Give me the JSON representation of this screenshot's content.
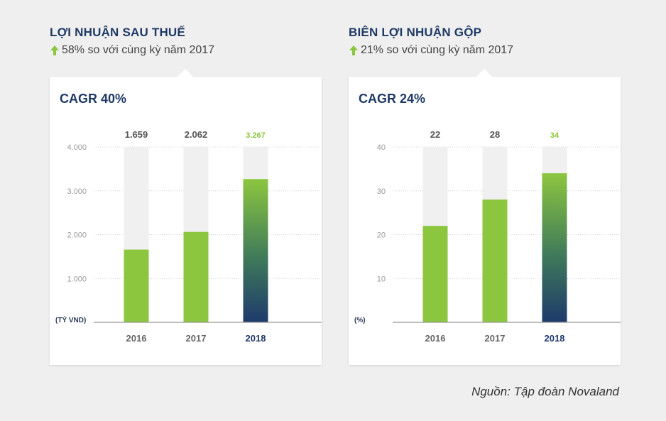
{
  "source": "Nguồn: Tập đoàn Novaland",
  "colors": {
    "green": "#8cc63f",
    "navy": "#1e3a6b",
    "track": "#f0f0f0",
    "value_highlight": "#8cc63f"
  },
  "icons": {
    "trend": "arrow-up-icon"
  },
  "panels": [
    {
      "title": "LỢI NHUẬN SAU THUẾ",
      "subtitle": "58% so với cùng kỳ năm 2017",
      "cagr": "CAGR 40%"
    },
    {
      "title": "BIÊN LỢI NHUẬN GỘP",
      "subtitle": "21% so với cùng kỳ năm 2017",
      "cagr": "CAGR 24%"
    }
  ],
  "chart_data": [
    {
      "type": "bar",
      "categories": [
        "2016",
        "2017",
        "2018"
      ],
      "values": [
        1659,
        2062,
        3267
      ],
      "value_labels": [
        "1.659",
        "2.062",
        "3.267"
      ],
      "ylim": [
        0,
        4000
      ],
      "yticks": [
        1000,
        2000,
        3000,
        4000
      ],
      "ytick_labels": [
        "1.000",
        "2.000",
        "3.000",
        "4.000"
      ],
      "unit_label": "(TỶ VND)",
      "highlight_index": 2,
      "grid": true
    },
    {
      "type": "bar",
      "categories": [
        "2016",
        "2017",
        "2018"
      ],
      "values": [
        22,
        28,
        34
      ],
      "value_labels": [
        "22",
        "28",
        "34"
      ],
      "ylim": [
        0,
        40
      ],
      "yticks": [
        10,
        20,
        30,
        40
      ],
      "ytick_labels": [
        "10",
        "20",
        "30",
        "40"
      ],
      "unit_label": "(%)",
      "highlight_index": 2,
      "grid": true
    }
  ]
}
